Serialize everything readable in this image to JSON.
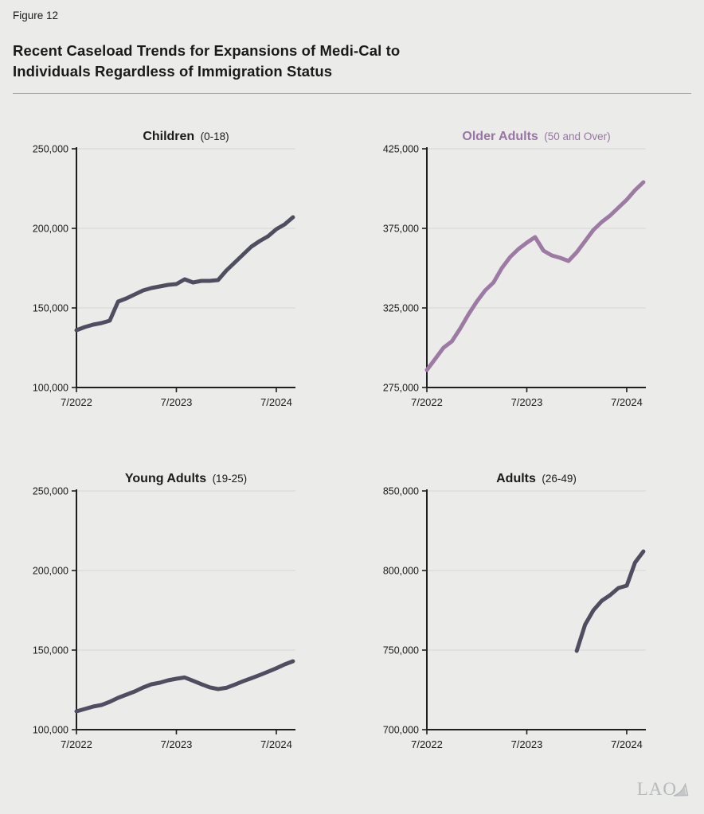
{
  "figure_label": "Figure 12",
  "title_line1": "Recent Caseload Trends for Expansions of Medi-Cal to",
  "title_line2": "Individuals Regardless of Immigration Status",
  "footer": {
    "logo_text": "LAO"
  },
  "colors": {
    "background": "#ebebe9",
    "axis": "#1f1f1f",
    "grid": "#dadad7",
    "text": "#1a1a1a",
    "dark_line": "#4f4d60",
    "purple": "#9a74a4",
    "logo": "#b6babc"
  },
  "chart_data": [
    {
      "type": "line",
      "title": "Children",
      "title_suffix": "(0-18)",
      "title_color": "#1a1a1a",
      "line_color": "#4f4d60",
      "x_start": "7/2022",
      "x_end": "9/2024",
      "x_unit": "month",
      "start_month": 0,
      "months_total": 26.3,
      "xticks": [
        {
          "m": 0,
          "label": "7/2022"
        },
        {
          "m": 12,
          "label": "7/2023"
        },
        {
          "m": 24,
          "label": "7/2024"
        }
      ],
      "ylim": [
        100000,
        250000
      ],
      "yticks": [
        100000,
        150000,
        200000,
        250000
      ],
      "grid": true,
      "values": [
        136000,
        138000,
        139500,
        140500,
        142000,
        154000,
        156000,
        158500,
        161000,
        162500,
        163500,
        164500,
        165000,
        168000,
        166000,
        167000,
        167000,
        167500,
        173500,
        178500,
        183500,
        188500,
        192000,
        195000,
        199500,
        202500,
        207000
      ]
    },
    {
      "type": "line",
      "title": "Older Adults",
      "title_suffix": "(50 and Over)",
      "title_color": "#9a74a4",
      "line_color": "#9d7aa4",
      "x_start": "7/2022",
      "x_end": "9/2024",
      "x_unit": "month",
      "start_month": 0,
      "months_total": 26.3,
      "xticks": [
        {
          "m": 0,
          "label": "7/2022"
        },
        {
          "m": 12,
          "label": "7/2023"
        },
        {
          "m": 24,
          "label": "7/2024"
        }
      ],
      "ylim": [
        275000,
        425000
      ],
      "yticks": [
        275000,
        325000,
        375000,
        425000
      ],
      "grid": true,
      "values": [
        286000,
        293000,
        300000,
        304000,
        312000,
        321000,
        329000,
        336000,
        341000,
        350000,
        357000,
        362000,
        366000,
        369500,
        361000,
        358000,
        356500,
        354500,
        360000,
        367000,
        374000,
        379000,
        383000,
        388000,
        393000,
        399000,
        404000
      ]
    },
    {
      "type": "line",
      "title": "Young Adults",
      "title_suffix": "(19-25)",
      "title_color": "#1a1a1a",
      "line_color": "#4f4d60",
      "x_start": "7/2022",
      "x_end": "9/2024",
      "x_unit": "month",
      "start_month": 0,
      "months_total": 26.3,
      "xticks": [
        {
          "m": 0,
          "label": "7/2022"
        },
        {
          "m": 12,
          "label": "7/2023"
        },
        {
          "m": 24,
          "label": "7/2024"
        }
      ],
      "ylim": [
        100000,
        250000
      ],
      "yticks": [
        100000,
        150000,
        200000,
        250000
      ],
      "grid": true,
      "values": [
        111500,
        113000,
        114500,
        115500,
        117500,
        120000,
        122000,
        124000,
        126500,
        128500,
        129500,
        131000,
        132000,
        132800,
        130700,
        128600,
        126600,
        125500,
        126300,
        128300,
        130400,
        132300,
        134300,
        136400,
        138600,
        141000,
        143000
      ]
    },
    {
      "type": "line",
      "title": "Adults",
      "title_suffix": "(26-49)",
      "title_color": "#1a1a1a",
      "line_color": "#4f4d60",
      "x_start": "1/2024",
      "x_end": "9/2024",
      "x_unit": "month",
      "start_month": 18,
      "months_total": 26.3,
      "xticks": [
        {
          "m": 0,
          "label": "7/2022"
        },
        {
          "m": 12,
          "label": "7/2023"
        },
        {
          "m": 24,
          "label": "7/2024"
        }
      ],
      "ylim": [
        700000,
        850000
      ],
      "yticks": [
        700000,
        750000,
        800000,
        850000
      ],
      "grid": true,
      "values": [
        749500,
        766000,
        775000,
        781000,
        784500,
        789000,
        790500,
        805000,
        812000
      ]
    }
  ]
}
